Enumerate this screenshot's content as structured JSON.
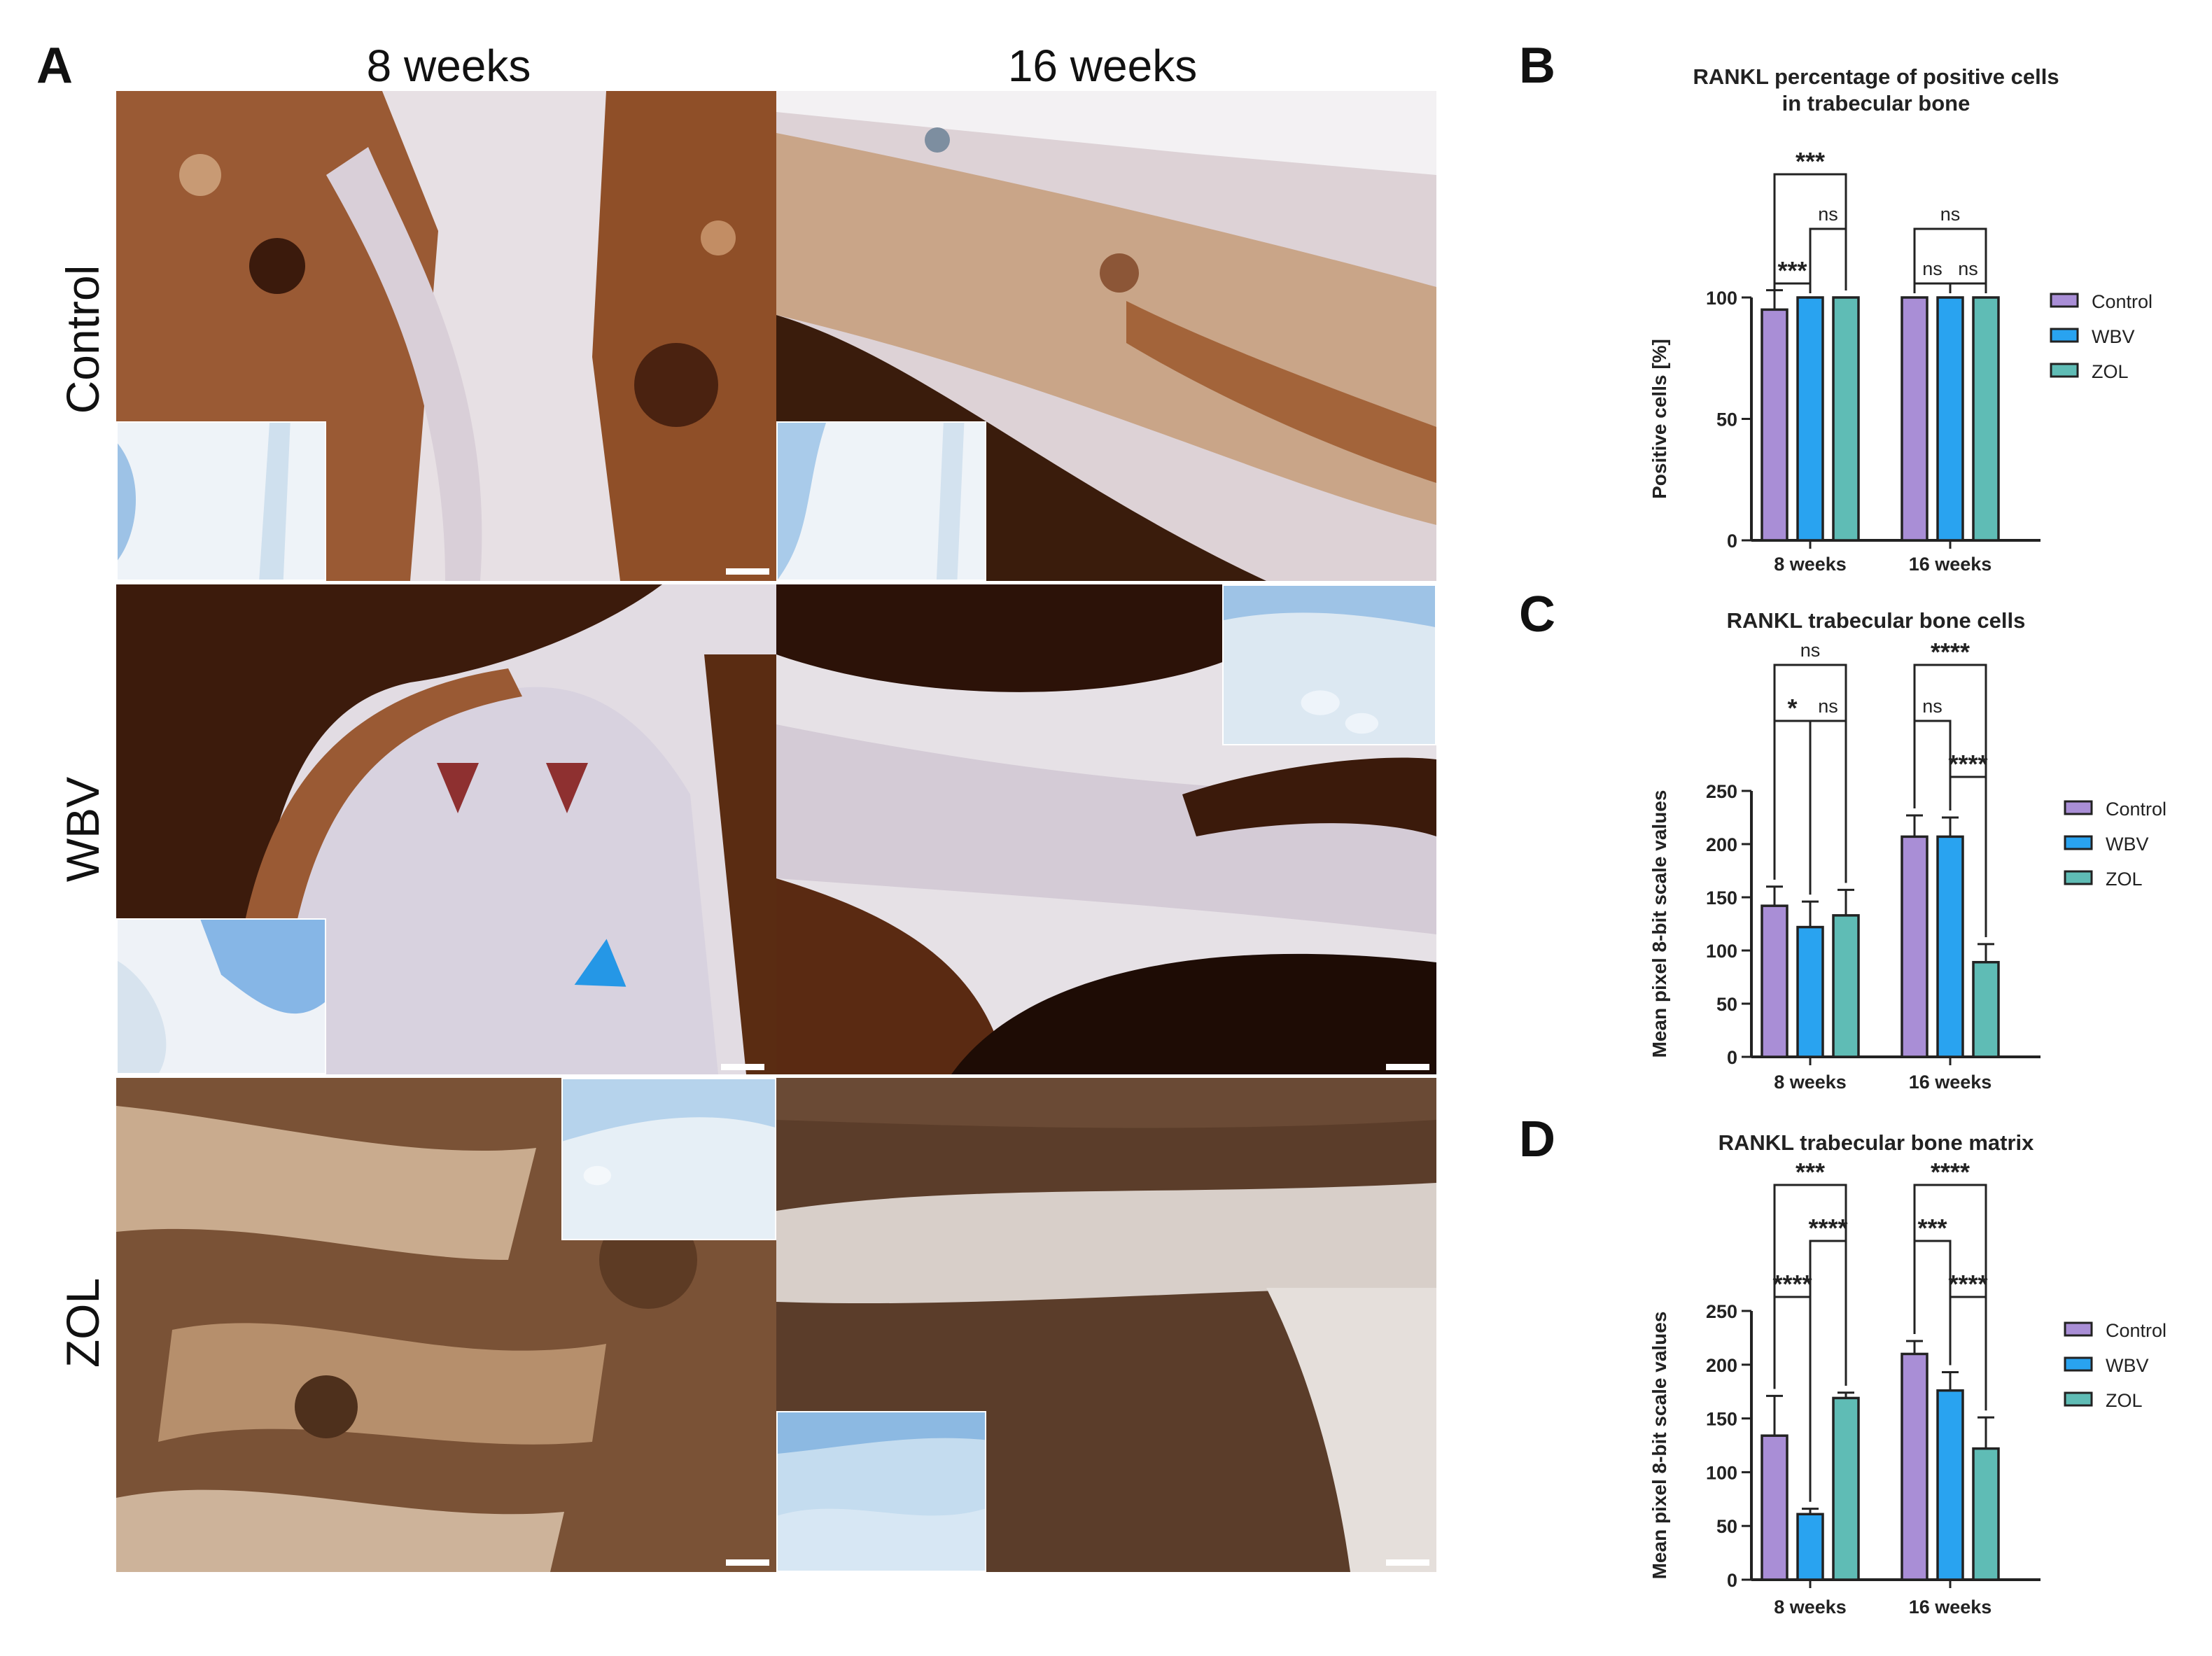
{
  "figure": {
    "panel_a": {
      "letter": "A",
      "columns": [
        "8 weeks",
        "16 weeks"
      ],
      "rows": [
        "Control",
        "WBV",
        "ZOL"
      ]
    },
    "colors": {
      "Control": "#a98ed6",
      "WBV": "#29a3f0",
      "ZOL": "#5fbcb5",
      "stain_brown": "#8a4a22",
      "counterstain_blue": "#9fc7e8",
      "arrow_red": "#8e3030",
      "arrow_blue": "#2597e6"
    }
  },
  "chart_data": [
    {
      "id": "B",
      "letter": "B",
      "type": "bar",
      "title": "RANKL percentage of positive cells\nin trabecular bone",
      "xlabel": "",
      "ylabel": "Positive cells [%]",
      "categories": [
        "8 weeks",
        "16 weeks"
      ],
      "series": [
        {
          "name": "Control",
          "values": [
            95,
            100
          ],
          "errors": [
            8,
            0
          ]
        },
        {
          "name": "WBV",
          "values": [
            100,
            100
          ],
          "errors": [
            0,
            0
          ]
        },
        {
          "name": "ZOL",
          "values": [
            100,
            100
          ],
          "errors": [
            0,
            0
          ]
        }
      ],
      "ylim": [
        0,
        100
      ],
      "yticks": [
        0,
        50,
        100
      ],
      "legend": "right",
      "grid": false,
      "significance": [
        {
          "cat": 0,
          "from": 0,
          "to": 2,
          "label": "***",
          "level": 3
        },
        {
          "cat": 0,
          "from": 1,
          "to": 2,
          "label": "ns",
          "level": 2
        },
        {
          "cat": 0,
          "from": 0,
          "to": 1,
          "label": "***",
          "level": 1
        },
        {
          "cat": 1,
          "from": 0,
          "to": 2,
          "label": "ns",
          "level": 2
        },
        {
          "cat": 1,
          "from": 0,
          "to": 1,
          "label": "ns",
          "level": 1
        },
        {
          "cat": 1,
          "from": 1,
          "to": 2,
          "label": "ns",
          "level": 1
        }
      ]
    },
    {
      "id": "C",
      "letter": "C",
      "type": "bar",
      "title": "RANKL trabecular bone cells",
      "xlabel": "",
      "ylabel": "Mean pixel 8-bit scale values",
      "categories": [
        "8 weeks",
        "16 weeks"
      ],
      "series": [
        {
          "name": "Control",
          "values": [
            142,
            207
          ],
          "errors": [
            18,
            20
          ]
        },
        {
          "name": "WBV",
          "values": [
            122,
            207
          ],
          "errors": [
            24,
            18
          ]
        },
        {
          "name": "ZOL",
          "values": [
            133,
            89
          ],
          "errors": [
            24,
            17
          ]
        }
      ],
      "ylim": [
        0,
        250
      ],
      "yticks": [
        0,
        50,
        100,
        150,
        200,
        250
      ],
      "legend": "right",
      "grid": false,
      "significance": [
        {
          "cat": 0,
          "from": 0,
          "to": 2,
          "label": "ns",
          "level": 3
        },
        {
          "cat": 0,
          "from": 0,
          "to": 1,
          "label": "*",
          "level": 2
        },
        {
          "cat": 0,
          "from": 1,
          "to": 2,
          "label": "ns",
          "level": 2
        },
        {
          "cat": 1,
          "from": 0,
          "to": 2,
          "label": "****",
          "level": 3
        },
        {
          "cat": 1,
          "from": 0,
          "to": 1,
          "label": "ns",
          "level": 2
        },
        {
          "cat": 1,
          "from": 1,
          "to": 2,
          "label": "****",
          "level": 1
        }
      ]
    },
    {
      "id": "D",
      "letter": "D",
      "type": "bar",
      "title": "RANKL trabecular bone matrix",
      "xlabel": "",
      "ylabel": "Mean pixel 8-bit scale values",
      "categories": [
        "8 weeks",
        "16 weeks"
      ],
      "series": [
        {
          "name": "Control",
          "values": [
            134,
            210
          ],
          "errors": [
            37,
            12
          ]
        },
        {
          "name": "WBV",
          "values": [
            61,
            176
          ],
          "errors": [
            5,
            17
          ]
        },
        {
          "name": "ZOL",
          "values": [
            169,
            122
          ],
          "errors": [
            5,
            29
          ]
        }
      ],
      "ylim": [
        0,
        250
      ],
      "yticks": [
        0,
        50,
        100,
        150,
        200,
        250
      ],
      "legend": "right",
      "grid": false,
      "significance": [
        {
          "cat": 0,
          "from": 0,
          "to": 2,
          "label": "***",
          "level": 3
        },
        {
          "cat": 0,
          "from": 1,
          "to": 2,
          "label": "****",
          "level": 2
        },
        {
          "cat": 0,
          "from": 0,
          "to": 1,
          "label": "****",
          "level": 1
        },
        {
          "cat": 1,
          "from": 0,
          "to": 2,
          "label": "****",
          "level": 3
        },
        {
          "cat": 1,
          "from": 0,
          "to": 1,
          "label": "***",
          "level": 2
        },
        {
          "cat": 1,
          "from": 1,
          "to": 2,
          "label": "****",
          "level": 1
        }
      ]
    }
  ]
}
